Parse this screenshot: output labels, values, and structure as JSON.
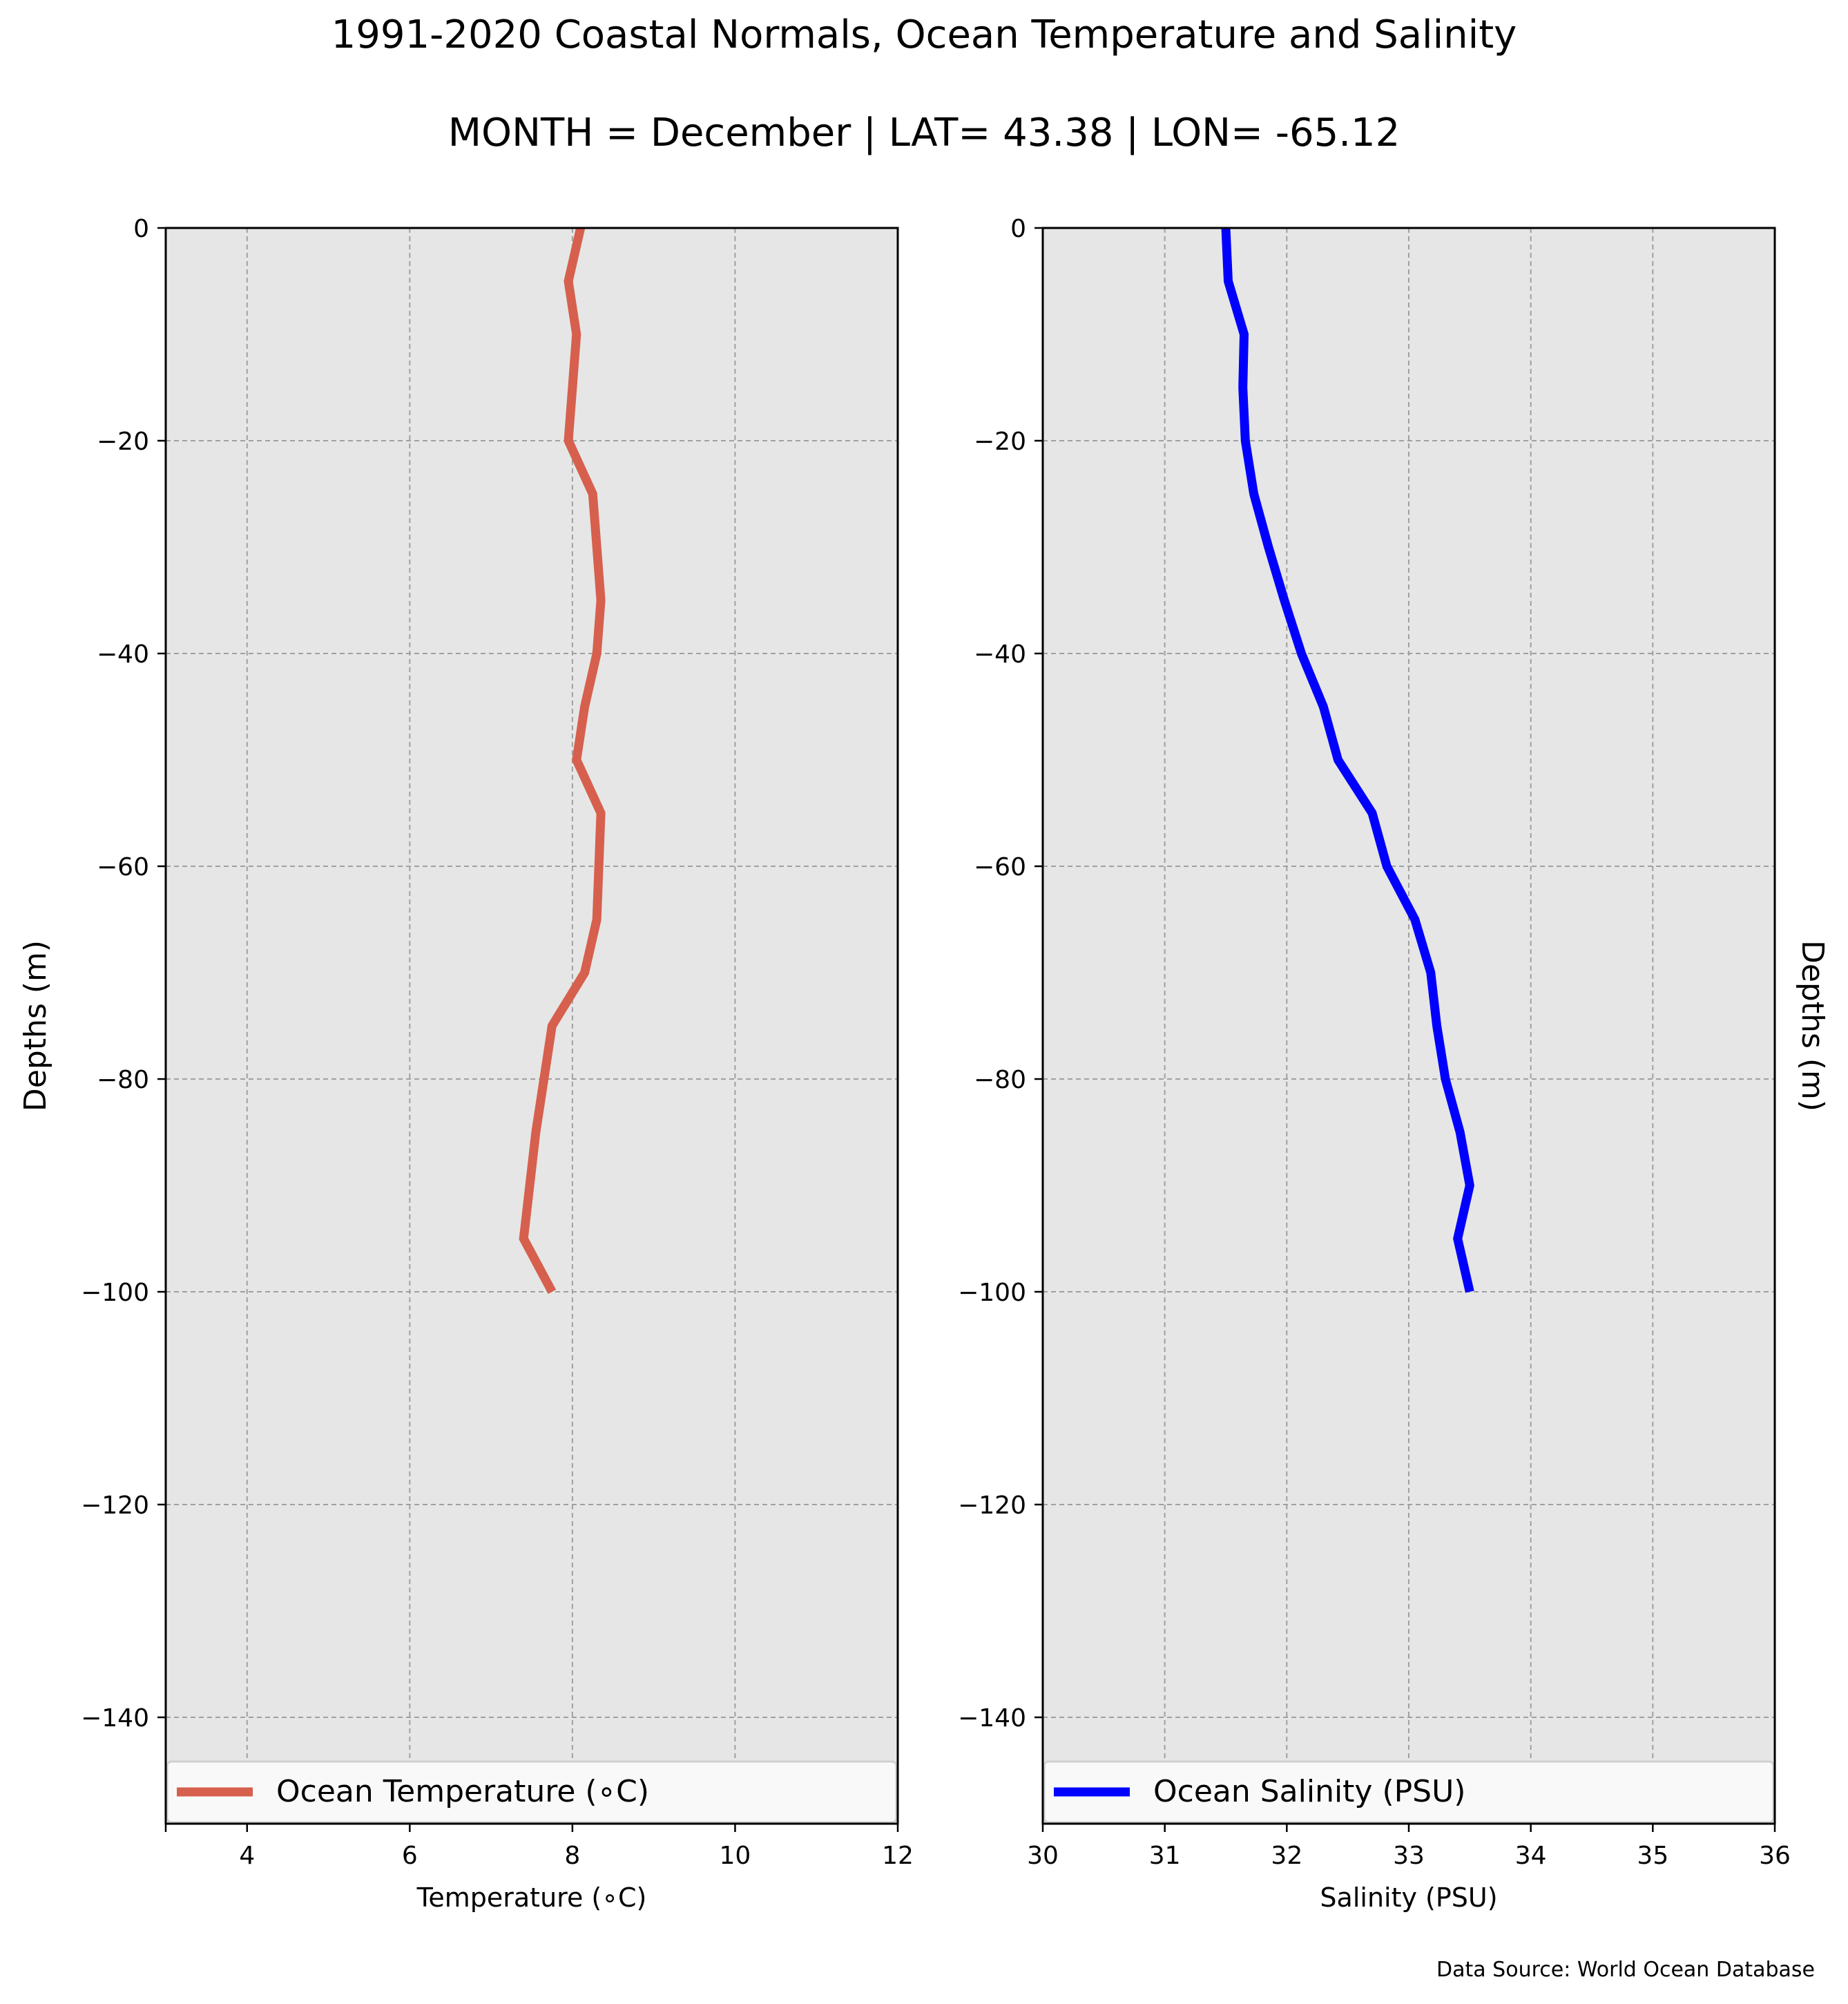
{
  "title": "1991-2020 Coastal Normals, Ocean Temperature and Salinity",
  "subtitle": "MONTH = December | LAT= 43.38 | LON= -65.12",
  "source_note": "Data Source: World Ocean Database",
  "chart_data": [
    {
      "type": "line",
      "xlabel": "Temperature (∘C)",
      "ylabel": "Depths (m)",
      "xlim": [
        3,
        12
      ],
      "ylim": [
        -150,
        0
      ],
      "xticks": [
        4,
        6,
        8,
        10,
        12
      ],
      "yticks": [
        0,
        -20,
        -40,
        -60,
        -80,
        -100,
        -120,
        -140
      ],
      "grid": true,
      "legend_position": "bottom",
      "series": [
        {
          "name": "Ocean Temperature (∘C)",
          "color": "#d6604d",
          "x": [
            8.1,
            7.95,
            8.05,
            8.0,
            7.95,
            8.25,
            8.35,
            8.3,
            8.15,
            8.05,
            8.35,
            8.3,
            8.15,
            7.75,
            7.65,
            7.55,
            7.4,
            7.75
          ],
          "y": [
            0,
            -5,
            -10,
            -15,
            -20,
            -25,
            -35,
            -40,
            -45,
            -50,
            -55,
            -65,
            -70,
            -75,
            -80,
            -85,
            -95,
            -100
          ]
        }
      ]
    },
    {
      "type": "line",
      "xlabel": "Salinity (PSU)",
      "ylabel": "Depths (m)",
      "ylabel_position": "right",
      "xlim": [
        30,
        36
      ],
      "ylim": [
        -150,
        0
      ],
      "xticks": [
        30,
        31,
        32,
        33,
        34,
        35,
        36
      ],
      "yticks": [
        0,
        -20,
        -40,
        -60,
        -80,
        -100,
        -120,
        -140
      ],
      "grid": true,
      "legend_position": "bottom",
      "series": [
        {
          "name": "Ocean Salinity (PSU)",
          "color": "#0000ff",
          "x": [
            31.5,
            31.52,
            31.65,
            31.64,
            31.66,
            31.73,
            31.85,
            31.98,
            32.12,
            32.3,
            32.42,
            32.7,
            32.82,
            33.05,
            33.18,
            33.23,
            33.3,
            33.42,
            33.5,
            33.4,
            33.5
          ],
          "y": [
            0,
            -5,
            -10,
            -15,
            -20,
            -25,
            -30,
            -35,
            -40,
            -45,
            -50,
            -55,
            -60,
            -65,
            -70,
            -75,
            -80,
            -85,
            -90,
            -95,
            -100
          ]
        }
      ]
    }
  ]
}
